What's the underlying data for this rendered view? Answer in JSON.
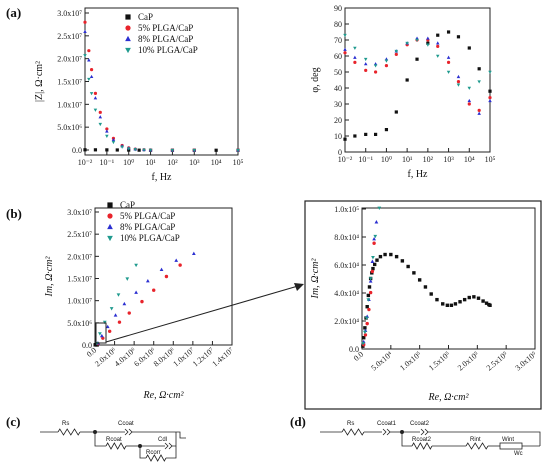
{
  "panel_labels": [
    "(a)",
    "(b)",
    "(c)",
    "(d)"
  ],
  "colors": {
    "CaP": "#111111",
    "PLGA5": "#e8232b",
    "PLGA8": "#2b2fd1",
    "PLGA10": "#1f9a8e",
    "axis": "#222222"
  },
  "legend": [
    "CaP",
    "5% PLGA/CaP",
    "8% PLGA/CaP",
    "10% PLGA/CaP"
  ],
  "chart_data": [
    {
      "type": "scatter",
      "id": "bode-modulus",
      "xlabel": "f, Hz",
      "ylabel": "|Z|, Ω·cm²",
      "xscale": "log",
      "xlim": [
        0.01,
        100000
      ],
      "ylim": [
        -1000000,
        30000000
      ],
      "xticks": [
        "10⁻²",
        "10⁻¹",
        "10⁰",
        "10¹",
        "10²",
        "10³",
        "10⁴",
        "10⁵"
      ],
      "yticks": [
        "0.0",
        "5.0x10⁶",
        "1.0x10⁷",
        "1.5x10⁷",
        "2.0x10⁷",
        "2.5x10⁷",
        "3.0x10⁷"
      ],
      "legend_position": "top-right",
      "series": [
        {
          "name": "CaP",
          "x": [
            0.01,
            0.03,
            0.1,
            0.3,
            1,
            3,
            10,
            100,
            1000,
            10000,
            100000
          ],
          "y": [
            100000,
            90000,
            80000,
            60000,
            40000,
            20000,
            10000,
            5000,
            3000,
            2000,
            1000
          ]
        },
        {
          "name": "5% PLGA/CaP",
          "x": [
            0.01,
            0.015,
            0.02,
            0.03,
            0.05,
            0.1,
            0.2,
            0.5,
            1,
            2,
            5,
            10,
            100,
            1000,
            100000
          ],
          "y": [
            27000000,
            21000000,
            17000000,
            12000000,
            8000000,
            4500000,
            2500000,
            1000000,
            500000,
            250000,
            100000,
            50000,
            5000,
            1000,
            200
          ]
        },
        {
          "name": "8% PLGA/CaP",
          "x": [
            0.01,
            0.015,
            0.02,
            0.03,
            0.05,
            0.1,
            0.2,
            0.5,
            1,
            2,
            5,
            10,
            100,
            1000,
            100000
          ],
          "y": [
            25000000,
            19000000,
            15500000,
            11000000,
            7000000,
            4000000,
            2200000,
            900000,
            450000,
            220000,
            90000,
            45000,
            4500,
            900,
            200
          ]
        },
        {
          "name": "10% PLGA/CaP",
          "x": [
            0.01,
            0.015,
            0.02,
            0.03,
            0.05,
            0.1,
            0.2,
            0.5,
            1,
            2,
            5,
            10,
            100,
            1000,
            100000
          ],
          "y": [
            20000000,
            15000000,
            12000000,
            8500000,
            5500000,
            3000000,
            1700000,
            700000,
            350000,
            170000,
            70000,
            35000,
            3500,
            700,
            150
          ]
        }
      ]
    },
    {
      "type": "scatter",
      "id": "bode-phase",
      "xlabel": "f, Hz",
      "ylabel": "φ, deg",
      "xscale": "log",
      "xlim": [
        0.01,
        100000
      ],
      "ylim": [
        0,
        90
      ],
      "xticks": [
        "10⁻²",
        "10⁻¹",
        "10⁰",
        "10¹",
        "10²",
        "10³",
        "10⁴",
        "10⁵"
      ],
      "yticks": [
        "0",
        "10",
        "20",
        "30",
        "40",
        "50",
        "60",
        "70",
        "80",
        "90"
      ],
      "series": [
        {
          "name": "CaP",
          "x": [
            0.01,
            0.03,
            0.1,
            0.3,
            1,
            3,
            10,
            30,
            100,
            300,
            1000,
            3000,
            10000,
            30000,
            100000
          ],
          "y": [
            8,
            10,
            11,
            11,
            14,
            25,
            45,
            58,
            68,
            73,
            75,
            72,
            65,
            52,
            38
          ]
        },
        {
          "name": "5% PLGA/CaP",
          "x": [
            0.01,
            0.03,
            0.1,
            0.3,
            1,
            3,
            10,
            30,
            100,
            300,
            1000,
            3000,
            10000,
            30000,
            100000
          ],
          "y": [
            62,
            56,
            51,
            50,
            54,
            61,
            67,
            70,
            70,
            66,
            56,
            44,
            30,
            26,
            34
          ]
        },
        {
          "name": "8% PLGA/CaP",
          "x": [
            0.01,
            0.03,
            0.1,
            0.3,
            1,
            3,
            10,
            30,
            100,
            300,
            1000,
            3000,
            10000,
            30000,
            100000
          ],
          "y": [
            64,
            59,
            55,
            55,
            58,
            63,
            68,
            71,
            71,
            68,
            59,
            47,
            32,
            24,
            32
          ]
        },
        {
          "name": "10% PLGA/CaP",
          "x": [
            0.01,
            0.03,
            0.1,
            0.3,
            1,
            3,
            10,
            30,
            100,
            300,
            1000,
            3000,
            10000,
            30000,
            100000
          ],
          "y": [
            73,
            65,
            58,
            54,
            57,
            63,
            68,
            70,
            67,
            60,
            50,
            42,
            40,
            44,
            50
          ]
        }
      ]
    },
    {
      "type": "scatter",
      "id": "nyquist",
      "xlabel": "Re, Ω·cm²",
      "ylabel": "Im, Ω·cm²",
      "xlim": [
        0,
        14000000
      ],
      "ylim": [
        0,
        30000000
      ],
      "xticks": [
        "0.0",
        "2.0x10⁶",
        "4.0x10⁶",
        "6.0x10⁶",
        "8.0x10⁶",
        "1.0x10⁷",
        "1.2x10⁷",
        "1.4x10⁷"
      ],
      "yticks": [
        "0.0",
        "5.0x10⁶",
        "1.0x10⁷",
        "1.5x10⁷",
        "2.0x10⁷",
        "2.5x10⁷",
        "3.0x10⁷"
      ],
      "legend_position": "top-left",
      "series": [
        {
          "name": "CaP",
          "x": [
            20000,
            60000,
            110000,
            160000,
            190000,
            220000
          ],
          "y": [
            30000,
            60000,
            50000,
            35000,
            30000,
            28000
          ]
        },
        {
          "name": "5% PLGA/CaP",
          "x": [
            300000,
            800000,
            1500000,
            2500000,
            3500000,
            4800000,
            6000000,
            7300000,
            8700000
          ],
          "y": [
            300000,
            1500000,
            3000000,
            5000000,
            7000000,
            9500000,
            12000000,
            15000000,
            17500000
          ]
        },
        {
          "name": "8% PLGA/CaP",
          "x": [
            300000,
            700000,
            1300000,
            2100000,
            3000000,
            4200000,
            5400000,
            6800000,
            8300000,
            10100000
          ],
          "y": [
            400000,
            2000000,
            4000000,
            6500000,
            9000000,
            11500000,
            14000000,
            16500000,
            18500000,
            20000000
          ]
        },
        {
          "name": "10% PLGA/CaP",
          "x": [
            200000,
            500000,
            1000000,
            1700000,
            2400000,
            3300000,
            4200000
          ],
          "y": [
            400000,
            2500000,
            5000000,
            8000000,
            11000000,
            14500000,
            17500000
          ]
        }
      ]
    },
    {
      "type": "scatter",
      "id": "nyquist-zoom",
      "xlabel": "Re, Ω·cm²",
      "ylabel": "Im, Ω·cm²",
      "xlim": [
        0,
        300000
      ],
      "ylim": [
        0,
        100000
      ],
      "xticks": [
        "0.0",
        "5.0x10⁴",
        "1.0x10⁵",
        "1.5x10⁵",
        "2.0x10⁵",
        "2.5x10⁵",
        "3.0x10⁵"
      ],
      "yticks": [
        "0.0",
        "2.0x10⁴",
        "4.0x10⁴",
        "6.0x10⁴",
        "8.0x10⁴",
        "1.0x10⁵"
      ],
      "series": [
        {
          "name": "CaP",
          "x": [
            1500,
            3000,
            5000,
            7000,
            9000,
            11000,
            13000,
            15000,
            17000,
            19000,
            22000,
            26000,
            32000,
            40000,
            50000,
            60000,
            70000,
            80000,
            90000,
            100000,
            110000,
            120000,
            130000,
            140000,
            148000,
            155000,
            162000,
            170000,
            178000,
            186000,
            194000,
            202000,
            210000,
            216000,
            220000,
            222000
          ],
          "y": [
            2000,
            8000,
            15000,
            22000,
            30000,
            38000,
            44000,
            50000,
            54000,
            57000,
            60000,
            63000,
            65500,
            67000,
            67000,
            65500,
            62500,
            58500,
            54000,
            49000,
            44000,
            39000,
            35000,
            32000,
            31000,
            31000,
            32000,
            33500,
            35000,
            36500,
            37000,
            36000,
            34000,
            32500,
            31500,
            31000
          ]
        },
        {
          "name": "5% PLGA/CaP",
          "x": [
            3000,
            6000,
            9000,
            12000,
            15000,
            18000,
            21000
          ],
          "y": [
            3000,
            10000,
            18000,
            28000,
            40000,
            55000,
            75000
          ]
        },
        {
          "name": "8% PLGA/CaP",
          "x": [
            3000,
            6000,
            9000,
            12000,
            15000,
            18000,
            21000,
            25000
          ],
          "y": [
            5000,
            13000,
            23000,
            35000,
            48000,
            62000,
            78000,
            90000
          ]
        },
        {
          "name": "10% PLGA/CaP",
          "x": [
            2000,
            5000,
            8000,
            11000,
            15000,
            19000,
            23000,
            30000
          ],
          "y": [
            4000,
            12000,
            22000,
            35000,
            50000,
            65000,
            80000,
            100000
          ]
        }
      ]
    }
  ],
  "circuits": {
    "c": {
      "rs": "Rs",
      "ccoat": "Ccoat",
      "rcoat": "Rcoat",
      "cdl": "Cdl",
      "rcorr": "Rcorr"
    },
    "d": {
      "rs": "Rs",
      "ccoat1": "Ccoat1",
      "ccoat2": "Ccoat2",
      "rcoat2": "Rcoat2",
      "rint": "Rint",
      "wint": "Wint",
      "wc": "Wc"
    }
  }
}
